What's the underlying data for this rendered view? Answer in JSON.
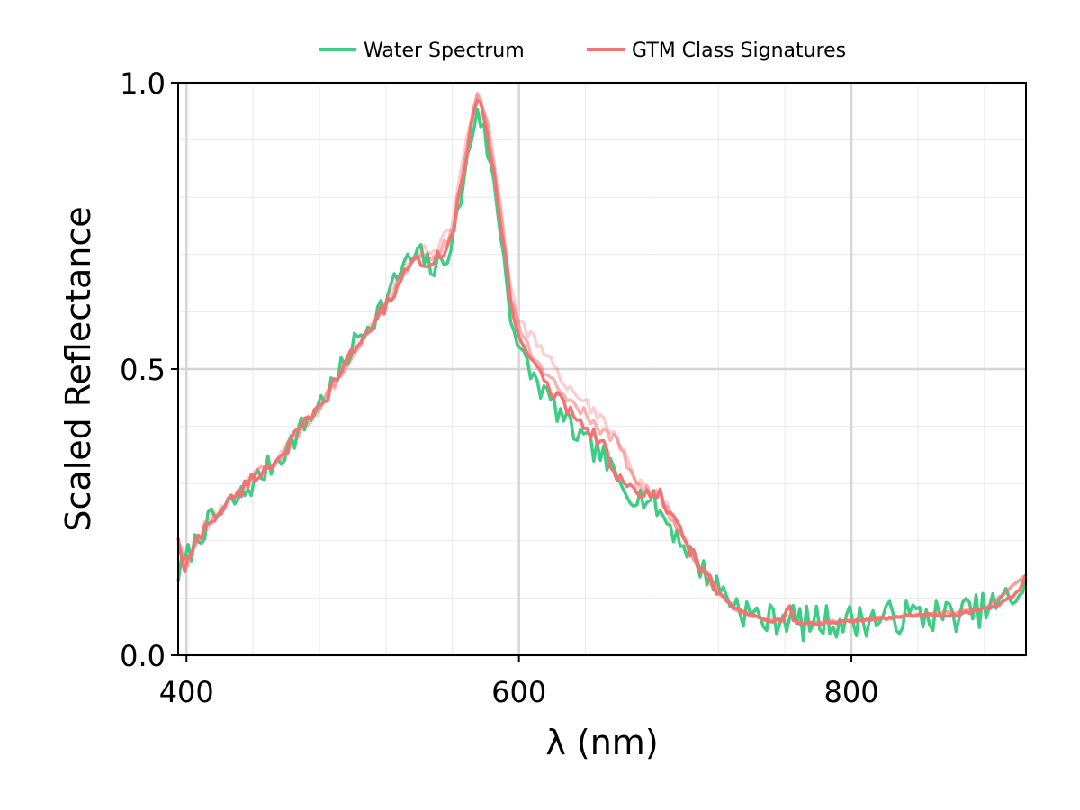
{
  "chart_data": {
    "type": "line",
    "xlabel": "λ (nm)",
    "ylabel": "Scaled Reflectance",
    "xlim": [
      395,
      905
    ],
    "ylim": [
      0.0,
      1.0
    ],
    "xticks": [
      400,
      600,
      800
    ],
    "yticks": [
      0.0,
      0.5,
      1.0
    ],
    "xtick_labels": [
      "400",
      "600",
      "800"
    ],
    "ytick_labels": [
      "0.0",
      "0.5",
      "1.0"
    ],
    "grid": true,
    "legend_position": "top-center",
    "legend": [
      {
        "label": "Water Spectrum",
        "color": "#3dcd84"
      },
      {
        "label": "GTM Class Signatures",
        "color": "#f37373"
      }
    ],
    "series": [
      {
        "name": "Water Spectrum",
        "color": "#3dcd84",
        "noise": 0.022,
        "noise_tail": 0.03,
        "x": [
          395,
          400,
          410,
          420,
          430,
          440,
          450,
          460,
          470,
          480,
          490,
          500,
          510,
          520,
          530,
          540,
          550,
          560,
          565,
          570,
          575,
          580,
          585,
          590,
          595,
          600,
          610,
          620,
          630,
          640,
          650,
          660,
          670,
          680,
          690,
          700,
          710,
          720,
          730,
          740,
          750,
          760,
          770,
          780,
          790,
          800,
          820,
          840,
          860,
          880,
          890,
          900,
          905
        ],
        "y": [
          0.14,
          0.17,
          0.22,
          0.25,
          0.27,
          0.3,
          0.33,
          0.36,
          0.4,
          0.44,
          0.48,
          0.54,
          0.58,
          0.62,
          0.68,
          0.7,
          0.67,
          0.72,
          0.8,
          0.88,
          0.96,
          0.9,
          0.82,
          0.72,
          0.6,
          0.53,
          0.48,
          0.44,
          0.4,
          0.37,
          0.35,
          0.3,
          0.28,
          0.27,
          0.23,
          0.19,
          0.15,
          0.12,
          0.09,
          0.07,
          0.06,
          0.07,
          0.055,
          0.06,
          0.06,
          0.06,
          0.065,
          0.07,
          0.07,
          0.08,
          0.09,
          0.11,
          0.12
        ]
      },
      {
        "name": "GTM Class Signatures",
        "color": "#f37373",
        "noise": 0.012,
        "noise_tail": 0.003,
        "x": [
          395,
          398,
          400,
          410,
          420,
          430,
          440,
          450,
          460,
          470,
          480,
          490,
          500,
          510,
          520,
          530,
          540,
          550,
          560,
          565,
          570,
          575,
          580,
          585,
          590,
          595,
          600,
          610,
          620,
          630,
          640,
          650,
          660,
          670,
          680,
          685,
          690,
          700,
          710,
          720,
          730,
          740,
          750,
          760,
          762,
          765,
          770,
          780,
          800,
          820,
          840,
          860,
          880,
          890,
          900,
          905
        ],
        "y": [
          0.21,
          0.14,
          0.16,
          0.22,
          0.25,
          0.28,
          0.31,
          0.33,
          0.36,
          0.4,
          0.43,
          0.48,
          0.53,
          0.57,
          0.61,
          0.66,
          0.69,
          0.69,
          0.73,
          0.82,
          0.9,
          0.97,
          0.93,
          0.84,
          0.74,
          0.62,
          0.56,
          0.5,
          0.46,
          0.43,
          0.4,
          0.37,
          0.31,
          0.28,
          0.28,
          0.28,
          0.25,
          0.2,
          0.15,
          0.11,
          0.08,
          0.07,
          0.06,
          0.06,
          0.1,
          0.06,
          0.055,
          0.055,
          0.06,
          0.065,
          0.07,
          0.07,
          0.08,
          0.09,
          0.11,
          0.14
        ]
      },
      {
        "name": "",
        "color": "#f37373",
        "opacity": 0.35,
        "noise": 0.01,
        "noise_tail": 0.003,
        "x": [
          395,
          400,
          410,
          420,
          430,
          440,
          450,
          460,
          470,
          480,
          490,
          500,
          510,
          520,
          530,
          540,
          550,
          560,
          565,
          570,
          575,
          580,
          585,
          590,
          595,
          600,
          610,
          620,
          630,
          640,
          650,
          660,
          670,
          680,
          685,
          690,
          700,
          710,
          720,
          730,
          740,
          750,
          760,
          762,
          765,
          770,
          800,
          840,
          880,
          905
        ],
        "y": [
          0.2,
          0.16,
          0.22,
          0.25,
          0.28,
          0.31,
          0.33,
          0.36,
          0.4,
          0.43,
          0.48,
          0.53,
          0.58,
          0.62,
          0.67,
          0.71,
          0.71,
          0.75,
          0.84,
          0.92,
          0.98,
          0.95,
          0.86,
          0.76,
          0.64,
          0.58,
          0.55,
          0.51,
          0.47,
          0.44,
          0.41,
          0.38,
          0.3,
          0.29,
          0.29,
          0.25,
          0.2,
          0.15,
          0.11,
          0.08,
          0.07,
          0.06,
          0.06,
          0.1,
          0.06,
          0.055,
          0.06,
          0.07,
          0.08,
          0.14
        ]
      },
      {
        "name": "",
        "color": "#f37373",
        "opacity": 0.55,
        "noise": 0.01,
        "noise_tail": 0.003,
        "x": [
          395,
          400,
          410,
          420,
          430,
          440,
          450,
          460,
          470,
          480,
          490,
          500,
          510,
          520,
          530,
          540,
          550,
          560,
          565,
          570,
          575,
          580,
          585,
          590,
          595,
          600,
          610,
          620,
          630,
          640,
          650,
          660,
          670,
          680,
          685,
          690,
          700,
          710,
          720,
          730,
          740,
          750,
          760,
          762,
          765,
          770,
          800,
          840,
          880,
          905
        ],
        "y": [
          0.2,
          0.15,
          0.22,
          0.25,
          0.28,
          0.31,
          0.33,
          0.36,
          0.4,
          0.43,
          0.48,
          0.53,
          0.57,
          0.61,
          0.66,
          0.7,
          0.7,
          0.74,
          0.83,
          0.91,
          0.975,
          0.94,
          0.85,
          0.75,
          0.63,
          0.57,
          0.52,
          0.48,
          0.45,
          0.42,
          0.39,
          0.37,
          0.3,
          0.285,
          0.28,
          0.25,
          0.2,
          0.15,
          0.11,
          0.08,
          0.07,
          0.06,
          0.06,
          0.1,
          0.06,
          0.055,
          0.06,
          0.07,
          0.08,
          0.14
        ]
      }
    ]
  }
}
